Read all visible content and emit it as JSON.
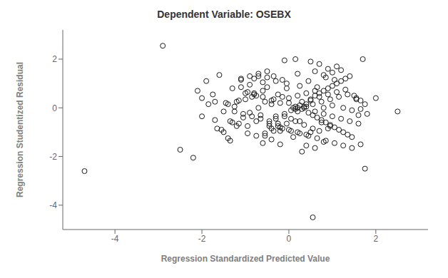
{
  "chart_data": {
    "type": "scatter",
    "title": "Dependent Variable: OSEBX",
    "xlabel": "Regression Standardized Predicted Value",
    "ylabel": "Regression Studentized Residual",
    "xlim": [
      -5.2,
      3.2
    ],
    "ylim": [
      -5.0,
      3.2
    ],
    "xticks": [
      -4,
      -2,
      0,
      2
    ],
    "yticks": [
      -4,
      -2,
      0,
      2
    ],
    "grid": false,
    "color": "#1a1a1a",
    "x": [
      -4.7,
      -2.9,
      -2.5,
      -2.2,
      -2.1,
      -2.0,
      -1.9,
      -1.85,
      -1.75,
      -1.7,
      -1.65,
      -1.6,
      -1.55,
      -1.5,
      -1.45,
      -1.4,
      -1.35,
      -1.3,
      -1.25,
      -1.2,
      -1.15,
      -1.1,
      -1.05,
      -1.0,
      -0.95,
      -0.9,
      -0.85,
      -0.8,
      -0.75,
      -0.7,
      -0.65,
      -0.6,
      -0.55,
      -0.5,
      -0.45,
      -0.4,
      -0.35,
      -0.3,
      -0.25,
      -0.2,
      -0.15,
      -0.1,
      -0.05,
      0.0,
      0.05,
      0.1,
      0.15,
      0.2,
      0.25,
      0.3,
      0.35,
      0.4,
      0.45,
      0.5,
      0.55,
      0.6,
      0.65,
      0.7,
      0.75,
      0.8,
      0.85,
      0.9,
      0.95,
      1.0,
      1.05,
      1.1,
      1.15,
      1.2,
      1.25,
      1.3,
      1.35,
      1.4,
      1.45,
      1.5,
      1.55,
      1.6,
      1.65,
      1.7,
      1.75,
      2.0,
      2.5,
      0.55,
      -0.1,
      0.15,
      0.2,
      -0.3,
      -0.5,
      -0.7,
      -0.9,
      -1.1,
      -1.3,
      0.4,
      0.6,
      0.8,
      0.3,
      -0.2,
      -0.4,
      0.1,
      -0.6,
      0.5,
      0.7,
      0.9,
      -0.05,
      0.25,
      0.45,
      0.65,
      0.85,
      1.05,
      0.15,
      0.35,
      0.55,
      0.75,
      0.95,
      -0.15,
      -0.35,
      -0.55,
      -0.75,
      -0.95,
      0.05,
      0.25,
      -0.25,
      -0.45,
      1.25,
      1.45,
      1.65,
      -0.1,
      0.3,
      0.5,
      0.7,
      -0.3,
      0.9,
      1.1,
      1.3,
      -1.5,
      -1.7,
      -2.0,
      0.0,
      0.2,
      0.4,
      -0.2,
      -0.4,
      0.6,
      0.8,
      1.0,
      1.2,
      -0.6,
      -0.8,
      0.2,
      0.4,
      0.6,
      0.8,
      1.0,
      1.2,
      1.4,
      1.6,
      1.8,
      0.0,
      0.2,
      0.4,
      0.6,
      0.8,
      1.0,
      -0.2,
      -0.4,
      -0.6,
      -0.8,
      -1.0,
      -1.2,
      -1.4,
      -0.05,
      -0.25,
      -0.45,
      -0.65,
      -0.85,
      -1.05,
      -1.25,
      0.15,
      0.35,
      0.55,
      0.75,
      0.95,
      1.15,
      1.35,
      1.55,
      1.75,
      0.05,
      0.25,
      0.45,
      -0.15,
      -0.35,
      -0.55,
      -0.75,
      -0.95,
      -1.15,
      -1.35,
      0.65,
      0.85,
      1.05,
      1.25,
      1.45,
      1.65,
      -0.5,
      -0.7,
      -0.9,
      -1.1,
      0.5,
      0.7,
      0.9,
      1.1
    ],
    "values": [
      -2.6,
      2.55,
      -1.72,
      -2.05,
      0.7,
      0.4,
      1.1,
      0.15,
      0.55,
      -0.5,
      -0.85,
      1.35,
      -0.9,
      -1.0,
      0.2,
      -1.25,
      -1.35,
      -0.6,
      0.05,
      -0.75,
      0.3,
      0.85,
      -0.4,
      0.6,
      -1.05,
      -0.2,
      0.45,
      1.2,
      -0.55,
      0.0,
      -0.3,
      1.05,
      -1.15,
      0.85,
      -0.65,
      0.15,
      1.3,
      -0.45,
      0.55,
      -0.8,
      1.15,
      -0.35,
      1.0,
      0.2,
      -0.1,
      0.0,
      0.05,
      -0.15,
      0.1,
      -0.05,
      0.0,
      0.15,
      -0.2,
      0.3,
      -0.3,
      0.5,
      -0.4,
      0.6,
      -0.5,
      0.7,
      -0.6,
      0.8,
      -0.7,
      0.9,
      -0.8,
      1.0,
      -0.9,
      1.1,
      -1.0,
      1.2,
      -1.1,
      1.3,
      -1.2,
      0.5,
      0.4,
      -0.3,
      0.3,
      2.0,
      -2.5,
      0.4,
      -0.15,
      -4.5,
      1.95,
      2.0,
      1.4,
      1.1,
      1.25,
      1.3,
      0.95,
      1.15,
      0.8,
      -1.55,
      -1.65,
      -1.4,
      -1.8,
      -1.5,
      -1.3,
      -1.2,
      -1.45,
      -1.0,
      -0.95,
      -0.85,
      0.8,
      0.9,
      1.1,
      0.85,
      1.25,
      1.15,
      -0.55,
      -0.7,
      -0.85,
      -0.6,
      -0.75,
      0.45,
      0.35,
      0.25,
      0.5,
      0.65,
      -0.45,
      -0.55,
      -0.65,
      -0.75,
      0.0,
      -0.1,
      -0.05,
      -0.25,
      0.25,
      0.35,
      0.45,
      -0.35,
      0.55,
      0.65,
      0.75,
      -0.15,
      0.25,
      -0.35,
      -0.9,
      -1.0,
      -1.1,
      -0.95,
      -0.85,
      1.5,
      1.35,
      1.45,
      1.55,
      0.7,
      0.6,
      0.0,
      0.05,
      -0.15,
      -0.25,
      -0.35,
      -0.45,
      -0.55,
      -0.65,
      -0.25,
      0.4,
      0.5,
      0.6,
      0.7,
      0.0,
      0.1,
      0.2,
      0.3,
      0.45,
      0.55,
      0.35,
      0.25,
      0.15,
      -0.65,
      -0.75,
      -0.55,
      -0.45,
      -0.35,
      -0.25,
      -0.15,
      -0.05,
      0.05,
      0.15,
      0.25,
      0.35,
      0.45,
      0.55,
      0.35,
      0.15,
      -0.95,
      -1.05,
      -1.15,
      -0.85,
      -0.95,
      -1.05,
      -1.15,
      -0.75,
      -0.65,
      -0.55,
      -1.25,
      -1.35,
      -1.45,
      -1.55,
      -1.65,
      -1.5,
      1.5,
      1.4,
      1.3,
      1.2,
      1.9,
      1.8,
      1.6,
      1.7
    ]
  }
}
